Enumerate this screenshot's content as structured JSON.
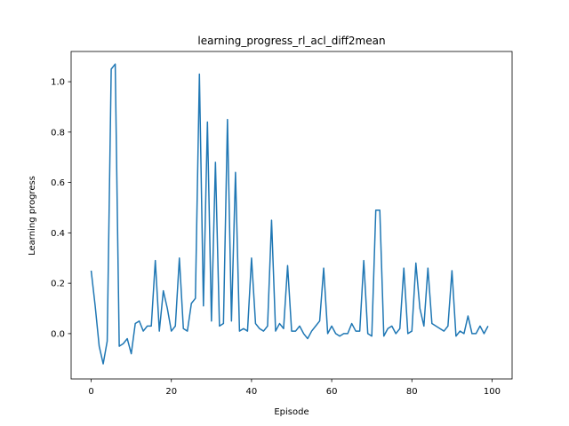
{
  "chart_data": {
    "type": "line",
    "title": "learning_progress_rl_acl_diff2mean",
    "xlabel": "Episode",
    "ylabel": "Learning progress",
    "xlim": [
      -5,
      105
    ],
    "ylim": [
      -0.18,
      1.12
    ],
    "xticks": [
      0,
      20,
      40,
      60,
      80,
      100
    ],
    "yticks": [
      0.0,
      0.2,
      0.4,
      0.6,
      0.8,
      1.0
    ],
    "xtick_labels": [
      "0",
      "20",
      "40",
      "60",
      "80",
      "100"
    ],
    "ytick_labels": [
      "0.0",
      "0.2",
      "0.4",
      "0.6",
      "0.8",
      "1.0"
    ],
    "grid": false,
    "line_color": "#1f77b4",
    "series": [
      {
        "x": [
          0,
          1,
          2,
          3,
          4,
          5,
          6,
          7,
          8,
          9,
          10,
          11,
          12,
          13,
          14,
          15,
          16,
          17,
          18,
          19,
          20,
          21,
          22,
          23,
          24,
          25,
          26,
          27,
          28,
          29,
          30,
          31,
          32,
          33,
          34,
          35,
          36,
          37,
          38,
          39,
          40,
          41,
          42,
          43,
          44,
          45,
          46,
          47,
          48,
          49,
          50,
          51,
          52,
          53,
          54,
          55,
          56,
          57,
          58,
          59,
          60,
          61,
          62,
          63,
          64,
          65,
          66,
          67,
          68,
          69,
          70,
          71,
          72,
          73,
          74,
          75,
          76,
          77,
          78,
          79,
          80,
          81,
          82,
          83,
          84,
          85,
          86,
          87,
          88,
          89,
          90,
          91,
          92,
          93,
          94,
          95,
          96,
          97,
          98,
          99
        ],
        "values": [
          0.25,
          0.11,
          -0.05,
          -0.12,
          -0.03,
          1.05,
          1.07,
          -0.05,
          -0.04,
          -0.02,
          -0.08,
          0.04,
          0.05,
          0.01,
          0.03,
          0.03,
          0.29,
          0.01,
          0.17,
          0.1,
          0.01,
          0.03,
          0.3,
          0.02,
          0.01,
          0.12,
          0.14,
          1.03,
          0.11,
          0.84,
          0.05,
          0.68,
          0.03,
          0.04,
          0.85,
          0.05,
          0.64,
          0.01,
          0.02,
          0.01,
          0.3,
          0.04,
          0.02,
          0.01,
          0.03,
          0.45,
          0.01,
          0.04,
          0.02,
          0.27,
          0.01,
          0.01,
          0.03,
          0.0,
          -0.02,
          0.01,
          0.03,
          0.05,
          0.26,
          0.0,
          0.03,
          0.0,
          -0.01,
          0.0,
          0.0,
          0.04,
          0.01,
          0.01,
          0.29,
          0.0,
          -0.01,
          0.49,
          0.49,
          -0.01,
          0.02,
          0.03,
          0.0,
          0.02,
          0.26,
          0.0,
          0.01,
          0.28,
          0.1,
          0.03,
          0.26,
          0.04,
          0.03,
          0.02,
          0.01,
          0.03,
          0.25,
          -0.01,
          0.01,
          0.0,
          0.07,
          0.0,
          0.0,
          0.03,
          0.0,
          0.03
        ]
      }
    ]
  }
}
